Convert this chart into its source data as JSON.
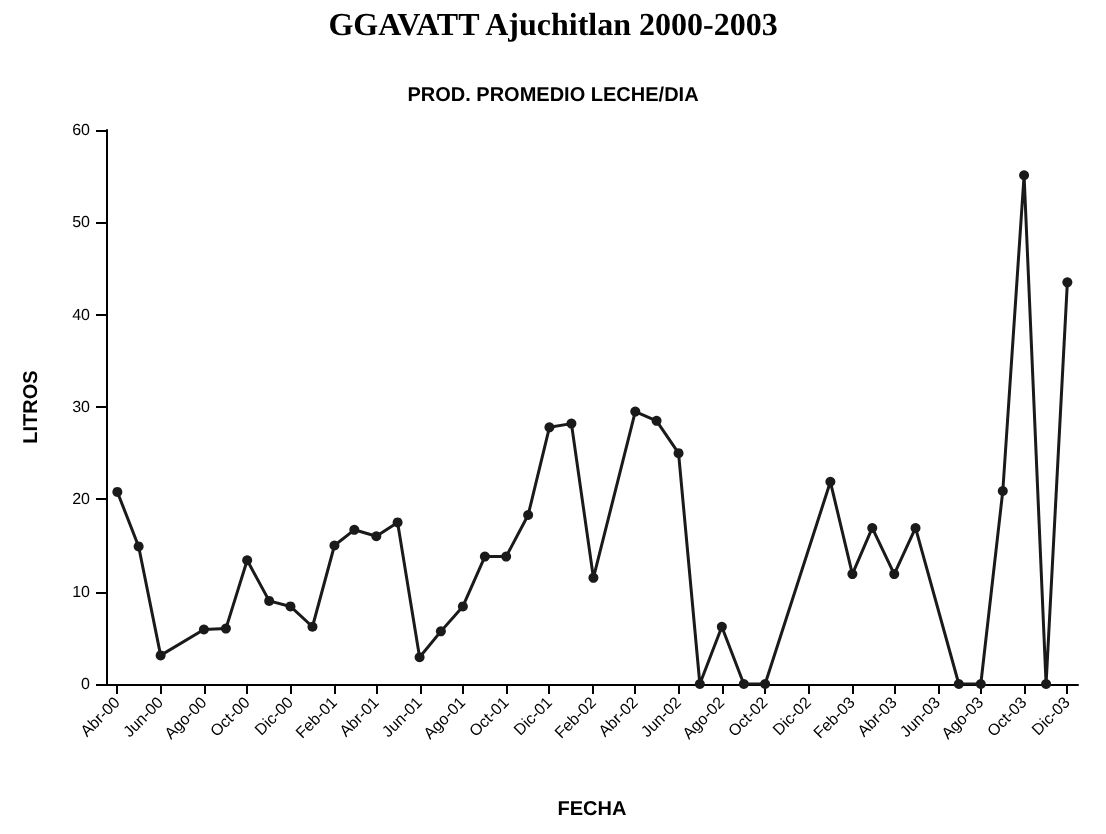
{
  "chart_data": {
    "type": "line",
    "title": "GGAVATT Ajuchitlan 2000-2003",
    "subtitle": "PROD. PROMEDIO LECHE/DIA",
    "xlabel": "FECHA",
    "ylabel": "LITROS",
    "x": [
      "2000-04",
      "2000-05",
      "2000-06",
      "2000-08",
      "2000-09",
      "2000-10",
      "2000-11",
      "2000-12",
      "2001-01",
      "2001-02",
      "2001-03",
      "2001-04",
      "2001-05",
      "2001-06",
      "2001-07",
      "2001-08",
      "2001-09",
      "2001-10",
      "2001-11",
      "2001-12",
      "2002-01",
      "2002-02",
      "2002-04",
      "2002-05",
      "2002-06",
      "2002-07",
      "2002-08",
      "2002-09",
      "2002-10",
      "2003-01",
      "2003-02",
      "2003-03",
      "2003-04",
      "2003-05",
      "2003-07",
      "2003-08",
      "2003-09",
      "2003-10",
      "2003-11",
      "2003-12"
    ],
    "series": [
      {
        "color": "#1a1a1a",
        "values": [
          20.8,
          14.9,
          3.1,
          5.9,
          6,
          13.4,
          9,
          8.4,
          6.2,
          15,
          16.7,
          16,
          17.5,
          2.9,
          5.7,
          8.4,
          13.8,
          13.8,
          18.3,
          27.8,
          28.2,
          11.5,
          29.5,
          28.5,
          25,
          0,
          6.2,
          0,
          0,
          21.9,
          11.9,
          16.9,
          11.9,
          16.9,
          0,
          0,
          20.9,
          55.1,
          0,
          43.5
        ]
      }
    ],
    "xlim": [
      "2000-03-16",
      "2003-12-16"
    ],
    "xticks": [
      {
        "value": "2000-04",
        "label": "Abr-00"
      },
      {
        "value": "2000-06",
        "label": "Jun-00"
      },
      {
        "value": "2000-08",
        "label": "Ago-00"
      },
      {
        "value": "2000-10",
        "label": "Oct-00"
      },
      {
        "value": "2000-12",
        "label": "Dic-00"
      },
      {
        "value": "2001-02",
        "label": "Feb-01"
      },
      {
        "value": "2001-04",
        "label": "Abr-01"
      },
      {
        "value": "2001-06",
        "label": "Jun-01"
      },
      {
        "value": "2001-08",
        "label": "Ago-01"
      },
      {
        "value": "2001-10",
        "label": "Oct-01"
      },
      {
        "value": "2001-12",
        "label": "Dic-01"
      },
      {
        "value": "2002-02",
        "label": "Feb-02"
      },
      {
        "value": "2002-04",
        "label": "Abr-02"
      },
      {
        "value": "2002-06",
        "label": "Jun-02"
      },
      {
        "value": "2002-08",
        "label": "Ago-02"
      },
      {
        "value": "2002-10",
        "label": "Oct-02"
      },
      {
        "value": "2002-12",
        "label": "Dic-02"
      },
      {
        "value": "2003-02",
        "label": "Feb-03"
      },
      {
        "value": "2003-04",
        "label": "Abr-03"
      },
      {
        "value": "2003-06",
        "label": "Jun-03"
      },
      {
        "value": "2003-08",
        "label": "Ago-03"
      },
      {
        "value": "2003-10",
        "label": "Oct-03"
      },
      {
        "value": "2003-12",
        "label": "Dic-03"
      }
    ],
    "ylim": [
      0,
      60
    ],
    "yticks": [
      0,
      10,
      20,
      30,
      40,
      50,
      60
    ],
    "grid": false,
    "marker": "circle",
    "line_style": "solid"
  }
}
